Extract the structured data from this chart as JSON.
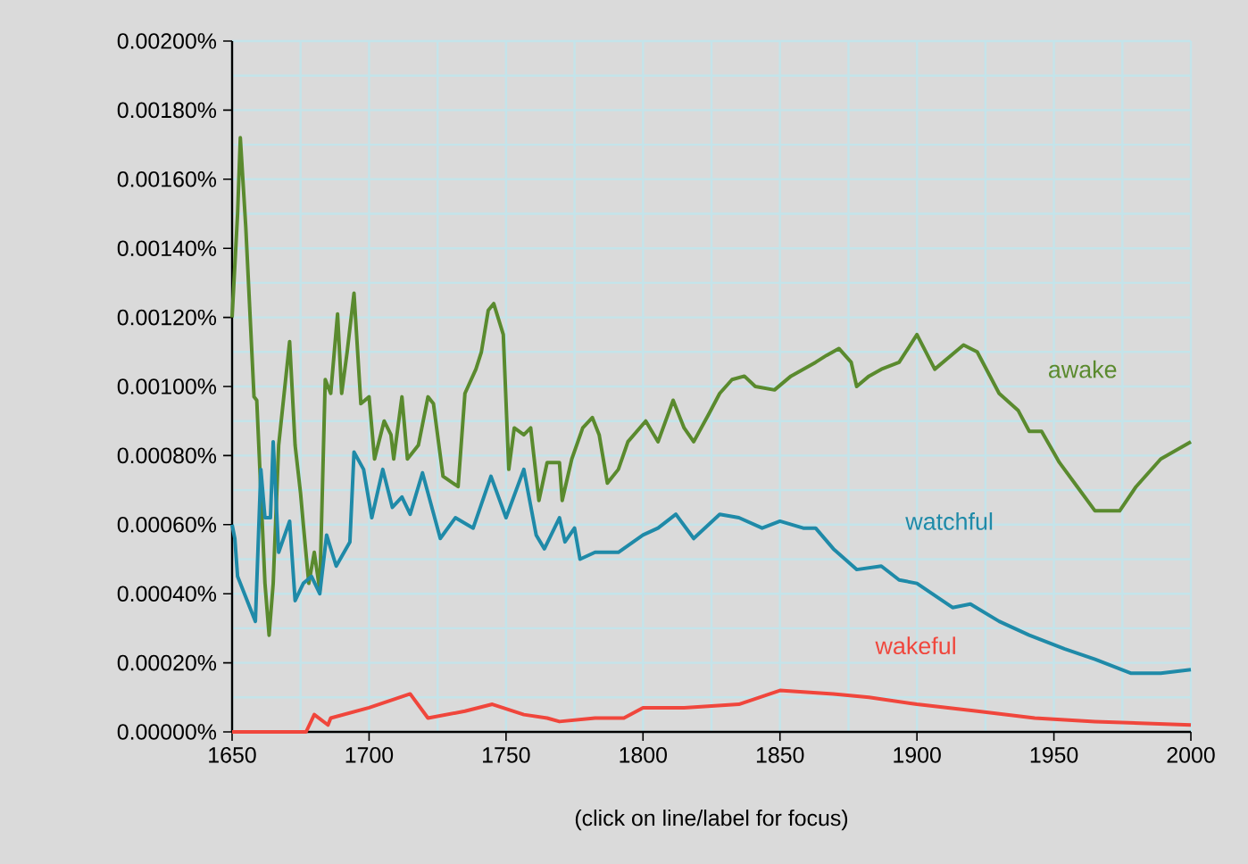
{
  "chart_data": {
    "type": "line",
    "xlim": [
      1650,
      2000
    ],
    "ylim": [
      0,
      0.002
    ],
    "xticks": [
      1650,
      1700,
      1750,
      1800,
      1850,
      1900,
      1950,
      2000
    ],
    "yticks": [
      {
        "value": 0,
        "label": "0.00000%"
      },
      {
        "value": 0.0002,
        "label": "0.00020%"
      },
      {
        "value": 0.0004,
        "label": "0.00040%"
      },
      {
        "value": 0.0006,
        "label": "0.00060%"
      },
      {
        "value": 0.0008,
        "label": "0.00080%"
      },
      {
        "value": 0.001,
        "label": "0.00100%"
      },
      {
        "value": 0.0012,
        "label": "0.00120%"
      },
      {
        "value": 0.0014,
        "label": "0.00140%"
      },
      {
        "value": 0.0016,
        "label": "0.00160%"
      },
      {
        "value": 0.0018,
        "label": "0.00180%"
      },
      {
        "value": 0.002,
        "label": "0.00200%"
      }
    ],
    "grid": true,
    "legend": false,
    "marker": "none",
    "line_style": "solid",
    "annotations": [
      "(click on line/label for focus)"
    ],
    "series": [
      {
        "name": "awake",
        "color": "#5a8a2e",
        "x": [
          1650,
          1652,
          1653,
          1655,
          1658,
          1659,
          1662,
          1663.5,
          1665,
          1667,
          1671,
          1673,
          1675,
          1676,
          1678,
          1680,
          1682,
          1684,
          1686,
          1688.5,
          1690,
          1692,
          1694.5,
          1697,
          1700,
          1702,
          1705.5,
          1708,
          1709,
          1712,
          1714,
          1718,
          1721.5,
          1723.5,
          1727,
          1732.5,
          1735,
          1739,
          1741,
          1743.5,
          1745.5,
          1749,
          1751,
          1753,
          1756.5,
          1759,
          1762,
          1765,
          1769.5,
          1770.5,
          1774,
          1778,
          1781.5,
          1784,
          1787,
          1791,
          1794.5,
          1801,
          1805.5,
          1811,
          1815,
          1818.5,
          1824,
          1828,
          1832.5,
          1837,
          1841,
          1848,
          1854,
          1863,
          1867,
          1871.5,
          1876,
          1878,
          1882.5,
          1887,
          1893.5,
          1900,
          1906.5,
          1917,
          1922,
          1930,
          1937,
          1941,
          1945.5,
          1952,
          1958.5,
          1965,
          1974,
          1980,
          1989,
          2000
        ],
        "values": [
          0.0012,
          0.0015,
          0.00172,
          0.00146,
          0.00097,
          0.00096,
          0.00043,
          0.00028,
          0.00043,
          0.00083,
          0.00113,
          0.00083,
          0.00069,
          0.0006,
          0.00043,
          0.00052,
          0.00041,
          0.00102,
          0.00098,
          0.00121,
          0.00098,
          0.0011,
          0.00127,
          0.00095,
          0.00097,
          0.00079,
          0.0009,
          0.00086,
          0.00079,
          0.00097,
          0.00079,
          0.00083,
          0.00097,
          0.00095,
          0.00074,
          0.00071,
          0.00098,
          0.00105,
          0.0011,
          0.00122,
          0.00124,
          0.00115,
          0.00076,
          0.00088,
          0.00086,
          0.00088,
          0.00067,
          0.00078,
          0.00078,
          0.00067,
          0.00079,
          0.00088,
          0.00091,
          0.00086,
          0.00072,
          0.00076,
          0.00084,
          0.0009,
          0.00084,
          0.00096,
          0.00088,
          0.00084,
          0.00092,
          0.00098,
          0.00102,
          0.00103,
          0.001,
          0.00099,
          0.00103,
          0.00107,
          0.00109,
          0.00111,
          0.00107,
          0.001,
          0.00103,
          0.00105,
          0.00107,
          0.00115,
          0.00105,
          0.00112,
          0.0011,
          0.00098,
          0.00093,
          0.00087,
          0.00087,
          0.00078,
          0.00071,
          0.00064,
          0.00064,
          0.00071,
          0.00079,
          0.00084
        ]
      },
      {
        "name": "watchful",
        "color": "#1f8aa8",
        "x": [
          1650,
          1651,
          1652,
          1656.5,
          1658.5,
          1660.5,
          1662,
          1664,
          1665,
          1667,
          1671,
          1673,
          1676,
          1679,
          1682,
          1684.5,
          1688,
          1693,
          1694.5,
          1698,
          1701,
          1705,
          1708.5,
          1712,
          1715,
          1719.5,
          1726,
          1731.5,
          1738,
          1744.5,
          1750,
          1756.5,
          1761,
          1764,
          1769.5,
          1771.5,
          1775,
          1777,
          1782.5,
          1791,
          1800,
          1805.5,
          1812,
          1818.5,
          1828,
          1835,
          1843.5,
          1850,
          1858.5,
          1863,
          1869.5,
          1878,
          1887,
          1893.5,
          1900,
          1913,
          1919.5,
          1930,
          1941,
          1947.5,
          1954,
          1965,
          1978,
          1989,
          2000
        ],
        "values": [
          0.0006,
          0.00056,
          0.00045,
          0.00036,
          0.00032,
          0.00076,
          0.00062,
          0.00062,
          0.00084,
          0.00052,
          0.00061,
          0.00038,
          0.00043,
          0.00045,
          0.0004,
          0.00057,
          0.00048,
          0.00055,
          0.00081,
          0.00076,
          0.00062,
          0.00076,
          0.00065,
          0.00068,
          0.00063,
          0.00075,
          0.00056,
          0.00062,
          0.00059,
          0.00074,
          0.00062,
          0.00076,
          0.00057,
          0.00053,
          0.00062,
          0.00055,
          0.00059,
          0.0005,
          0.00052,
          0.00052,
          0.00057,
          0.00059,
          0.00063,
          0.00056,
          0.00063,
          0.00062,
          0.00059,
          0.00061,
          0.00059,
          0.00059,
          0.00053,
          0.00047,
          0.00048,
          0.00044,
          0.00043,
          0.00036,
          0.00037,
          0.00032,
          0.00028,
          0.00026,
          0.00024,
          0.00021,
          0.00017,
          0.00017,
          0.00018
        ]
      },
      {
        "name": "wakeful",
        "color": "#f0463c",
        "x": [
          1650,
          1677,
          1680,
          1685,
          1686,
          1700,
          1715,
          1721.5,
          1735,
          1745,
          1756.5,
          1765,
          1769.5,
          1782.5,
          1793,
          1800,
          1815,
          1835,
          1850,
          1869.5,
          1882.5,
          1900,
          1922,
          1943,
          1965,
          2000
        ],
        "values": [
          0,
          0,
          5e-05,
          2e-05,
          4e-05,
          7e-05,
          0.00011,
          4e-05,
          6e-05,
          8e-05,
          5e-05,
          4e-05,
          3e-05,
          4e-05,
          4e-05,
          7e-05,
          7e-05,
          8e-05,
          0.00012,
          0.00011,
          0.0001,
          8e-05,
          6e-05,
          4e-05,
          3e-05,
          2e-05
        ]
      }
    ]
  }
}
